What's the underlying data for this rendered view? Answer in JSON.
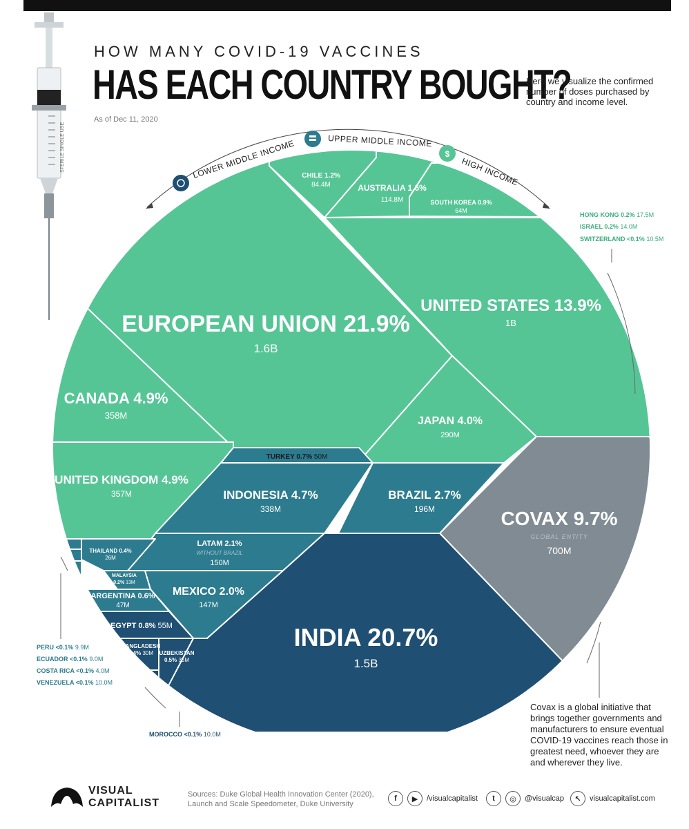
{
  "header": {
    "supertitle": "HOW MANY COVID-19 VACCINES",
    "title": "HAS EACH COUNTRY BOUGHT?",
    "intro": "Here we visualize the confirmed number of doses purchased by country and income level.",
    "as_of": "As of Dec 11, 2020"
  },
  "syringe": {
    "label": "STERILE SINGLE USE"
  },
  "colors": {
    "high_income": "#56C596",
    "upper_middle": "#2D7B8E",
    "lower_middle": "#1F4F72",
    "global_entity": "#808B93",
    "high_income_text": "#3BAE7E",
    "upper_middle_text": "#2D7B8E",
    "lower_middle_text": "#1F4F72"
  },
  "chart_data": {
    "type": "treemap",
    "title": "HAS EACH COUNTRY BOUGHT?",
    "unit": "doses",
    "groups": [
      {
        "name": "LOWER MIDDLE INCOME",
        "icon": "coin-icon"
      },
      {
        "name": "UPPER MIDDLE INCOME",
        "icon": "coin-stack-icon"
      },
      {
        "name": "HIGH INCOME",
        "icon": "money-bag-icon"
      }
    ],
    "items": [
      {
        "name": "EUROPEAN UNION",
        "share": "21.9%",
        "doses": "1.6B",
        "group": "high"
      },
      {
        "name": "UNITED STATES",
        "share": "13.9%",
        "doses": "1B",
        "group": "high"
      },
      {
        "name": "CANADA",
        "share": "4.9%",
        "doses": "358M",
        "group": "high"
      },
      {
        "name": "UNITED KINGDOM",
        "share": "4.9%",
        "doses": "357M",
        "group": "high"
      },
      {
        "name": "JAPAN",
        "share": "4.0%",
        "doses": "290M",
        "group": "high"
      },
      {
        "name": "CHILE",
        "share": "1.2%",
        "doses": "84.4M",
        "group": "high"
      },
      {
        "name": "AUSTRALIA",
        "share": "1.6%",
        "doses": "114.8M",
        "group": "high"
      },
      {
        "name": "SOUTH KOREA",
        "share": "0.9%",
        "doses": "64M",
        "group": "high"
      },
      {
        "name": "HONG KONG",
        "share": "0.2%",
        "doses": "17.5M",
        "group": "high"
      },
      {
        "name": "ISRAEL",
        "share": "0.2%",
        "doses": "14.0M",
        "group": "high"
      },
      {
        "name": "SWITZERLAND",
        "share": "<0.1%",
        "doses": "10.5M",
        "group": "high"
      },
      {
        "name": "TURKEY",
        "share": "0.7%",
        "doses": "50M",
        "group": "upper"
      },
      {
        "name": "INDONESIA",
        "share": "4.7%",
        "doses": "338M",
        "group": "upper"
      },
      {
        "name": "BRAZIL",
        "share": "2.7%",
        "doses": "196M",
        "group": "upper"
      },
      {
        "name": "LATAM",
        "share": "2.1%",
        "doses": "150M",
        "group": "upper",
        "note": "WITHOUT BRAZIL"
      },
      {
        "name": "MEXICO",
        "share": "2.0%",
        "doses": "147M",
        "group": "upper"
      },
      {
        "name": "THAILAND",
        "share": "0.4%",
        "doses": "26M",
        "group": "upper"
      },
      {
        "name": "MALAYSIA",
        "share": "0.2%",
        "doses": "13M",
        "group": "upper"
      },
      {
        "name": "ARGENTINA",
        "share": "0.6%",
        "doses": "47M",
        "group": "upper"
      },
      {
        "name": "PERU",
        "share": "<0.1%",
        "doses": "9.9M",
        "group": "upper"
      },
      {
        "name": "ECUADOR",
        "share": "<0.1%",
        "doses": "9.0M",
        "group": "upper"
      },
      {
        "name": "COSTA RICA",
        "share": "<0.1%",
        "doses": "4.0M",
        "group": "upper"
      },
      {
        "name": "VENEZUELA",
        "share": "<0.1%",
        "doses": "10.0M",
        "group": "upper"
      },
      {
        "name": "INDIA",
        "share": "20.7%",
        "doses": "1.5B",
        "group": "lower"
      },
      {
        "name": "EGYPT",
        "share": "0.8%",
        "doses": "55M",
        "group": "lower"
      },
      {
        "name": "BANGLADESH",
        "share": "0.4%",
        "doses": "30M",
        "group": "lower"
      },
      {
        "name": "UZBEKISTAN",
        "share": "0.5%",
        "doses": "35M",
        "group": "lower"
      },
      {
        "name": "MOROCCO",
        "share": "<0.1%",
        "doses": "10.0M",
        "group": "lower"
      },
      {
        "name": "COVAX",
        "share": "9.7%",
        "doses": "700M",
        "group": "global",
        "note": "GLOBAL ENTITY"
      }
    ]
  },
  "covax_note": "Covax is a global initiative that brings together governments and manufacturers to ensure eventual COVID-19 vaccines reach those in greatest need, whoever they are and wherever they live.",
  "footer": {
    "logo_line1": "VISUAL",
    "logo_line2": "CAPITALIST",
    "sources": "Sources: Duke Global Health Innovation Center (2020), Launch and Scale Speedometer, Duke University",
    "social_1": "/visualcapitalist",
    "social_2": "@visualcap",
    "website": "visualcapitalist.com"
  }
}
